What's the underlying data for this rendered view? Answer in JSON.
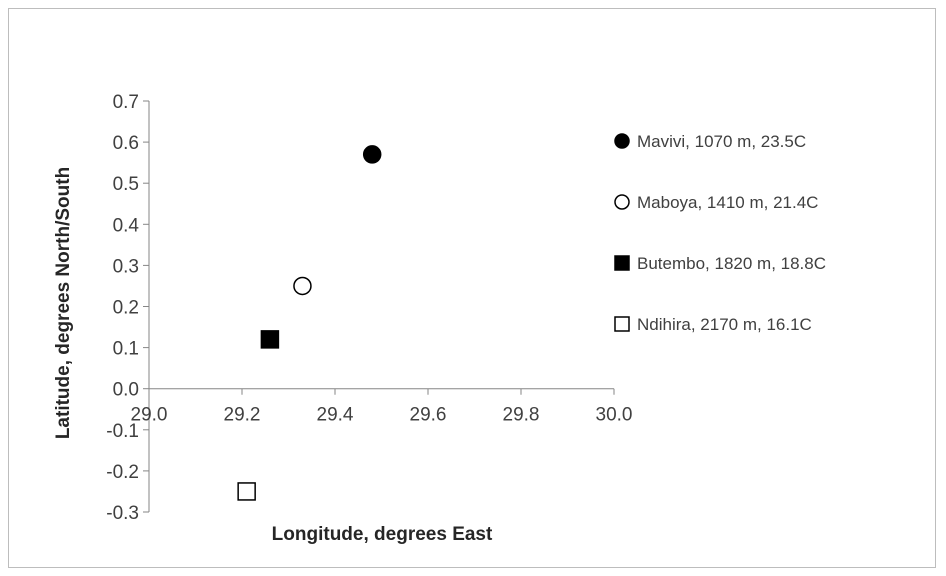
{
  "chart_data": {
    "type": "scatter",
    "title": "",
    "xlabel": "Longitude, degrees East",
    "ylabel": "Latitude, degrees North/South",
    "xlim": [
      29.0,
      30.0
    ],
    "ylim": [
      -0.3,
      0.7
    ],
    "x_ticks": [
      "29.0",
      "29.2",
      "29.4",
      "29.6",
      "29.8",
      "30.0"
    ],
    "y_ticks": [
      "0.7",
      "0.6",
      "0.5",
      "0.4",
      "0.3",
      "0.2",
      "0.1",
      "0.0",
      "-0.1",
      "-0.2",
      "-0.3"
    ],
    "grid": false,
    "legend_position": "right",
    "series": [
      {
        "name": "Mavivi, 1070 m, 23.5C",
        "marker": "filled-circle",
        "color": "#000000",
        "points": [
          {
            "x": 29.48,
            "y": 0.57
          }
        ]
      },
      {
        "name": "Maboya, 1410 m, 21.4C",
        "marker": "open-circle",
        "color": "#000000",
        "points": [
          {
            "x": 29.33,
            "y": 0.25
          }
        ]
      },
      {
        "name": "Butembo, 1820 m, 18.8C",
        "marker": "filled-square",
        "color": "#000000",
        "points": [
          {
            "x": 29.26,
            "y": 0.12
          }
        ]
      },
      {
        "name": "Ndihira, 2170 m, 16.1C",
        "marker": "open-square",
        "color": "#000000",
        "points": [
          {
            "x": 29.21,
            "y": -0.25
          }
        ]
      }
    ]
  }
}
